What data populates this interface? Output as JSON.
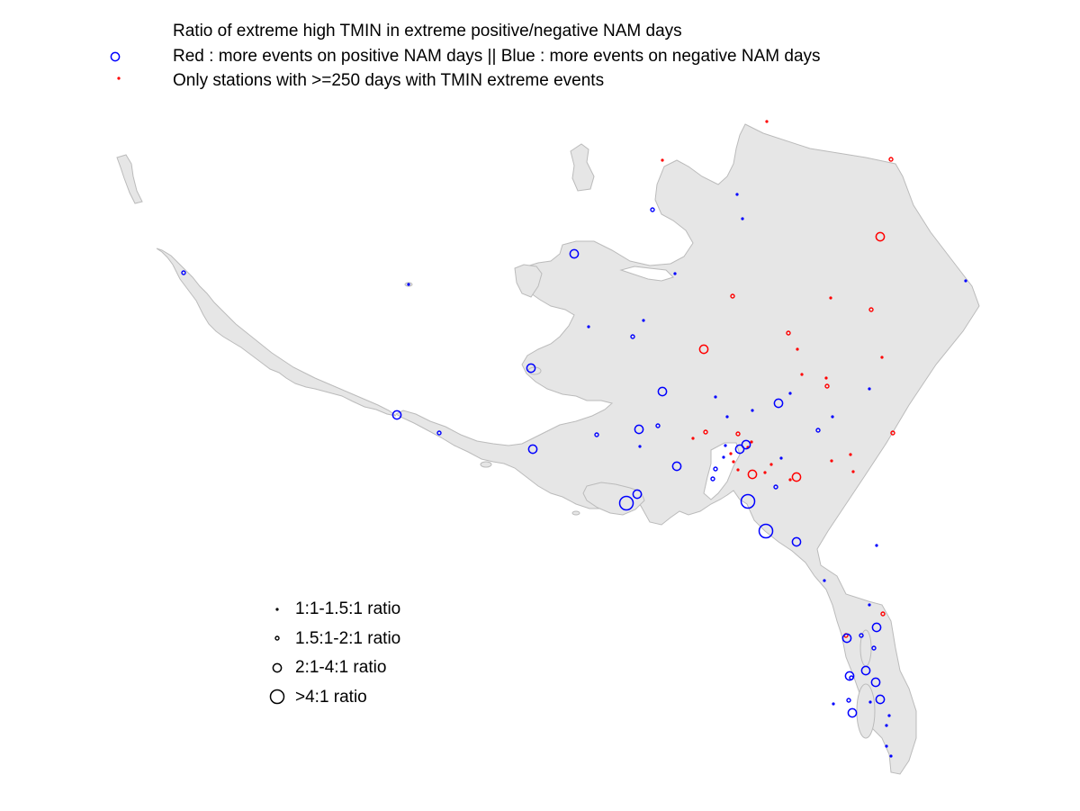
{
  "title": {
    "line1": "Ratio of extreme high TMIN in extreme positive/negative NAM days",
    "line2": "Red : more events on positive NAM days || Blue : more events on negative NAM days",
    "line3": "Only stations with >=250 days with TMIN extreme events"
  },
  "legend": {
    "items": [
      {
        "label": "1:1-1.5:1 ratio",
        "size": 1
      },
      {
        "label": "1.5:1-2:1 ratio",
        "size": 2
      },
      {
        "label": "2:1-4:1 ratio",
        "size": 3
      },
      {
        "label": ">4:1 ratio",
        "size": 4
      }
    ]
  },
  "colors": {
    "positive": "#ff0000",
    "negative": "#0000ff",
    "land": "#e6e6e6",
    "coastline": "#bbbbbb"
  },
  "stations_positive": [
    [
      852,
      135,
      1
    ],
    [
      990,
      177,
      2
    ],
    [
      978,
      263,
      3
    ],
    [
      814,
      329,
      2
    ],
    [
      923,
      331,
      1
    ],
    [
      968,
      344,
      2
    ],
    [
      876,
      370,
      2
    ],
    [
      782,
      388,
      3
    ],
    [
      886,
      388,
      1
    ],
    [
      980,
      397,
      1
    ],
    [
      891,
      416,
      1
    ],
    [
      918,
      420,
      1
    ],
    [
      919,
      429,
      2
    ],
    [
      784,
      480,
      2
    ],
    [
      770,
      487,
      1
    ],
    [
      820,
      482,
      2
    ],
    [
      835,
      491,
      1
    ],
    [
      992,
      481,
      2
    ],
    [
      812,
      504,
      1
    ],
    [
      815,
      513,
      1
    ],
    [
      831,
      497,
      1
    ],
    [
      836,
      527,
      3
    ],
    [
      820,
      522,
      1
    ],
    [
      850,
      525,
      1
    ],
    [
      885,
      530,
      3
    ],
    [
      878,
      533,
      1
    ],
    [
      857,
      516,
      1
    ],
    [
      948,
      524,
      1
    ],
    [
      945,
      505,
      1
    ],
    [
      940,
      706,
      2
    ],
    [
      981,
      682,
      2
    ],
    [
      924,
      512,
      1
    ],
    [
      736,
      178,
      1
    ]
  ],
  "stations_negative": [
    [
      204,
      303,
      2
    ],
    [
      454,
      316,
      1
    ],
    [
      725,
      233,
      2
    ],
    [
      819,
      216,
      1
    ],
    [
      825,
      243,
      1
    ],
    [
      750,
      304,
      1
    ],
    [
      638,
      282,
      3
    ],
    [
      590,
      409,
      3
    ],
    [
      654,
      363,
      1
    ],
    [
      703,
      374,
      2
    ],
    [
      715,
      356,
      1
    ],
    [
      736,
      435,
      3
    ],
    [
      795,
      441,
      1
    ],
    [
      865,
      448,
      3
    ],
    [
      878,
      437,
      1
    ],
    [
      836,
      456,
      1
    ],
    [
      808,
      463,
      1
    ],
    [
      909,
      478,
      2
    ],
    [
      925,
      463,
      1
    ],
    [
      966,
      432,
      1
    ],
    [
      1073,
      312,
      1
    ],
    [
      441,
      461,
      3
    ],
    [
      488,
      481,
      2
    ],
    [
      592,
      499,
      3
    ],
    [
      663,
      483,
      2
    ],
    [
      710,
      477,
      3
    ],
    [
      731,
      473,
      2
    ],
    [
      711,
      496,
      1
    ],
    [
      752,
      518,
      3
    ],
    [
      795,
      521,
      2
    ],
    [
      792,
      532,
      2
    ],
    [
      822,
      499,
      3
    ],
    [
      829,
      494,
      3
    ],
    [
      806,
      495,
      1
    ],
    [
      804,
      508,
      1
    ],
    [
      831,
      557,
      4
    ],
    [
      862,
      541,
      2
    ],
    [
      868,
      509,
      1
    ],
    [
      708,
      549,
      3
    ],
    [
      696,
      559,
      4
    ],
    [
      851,
      590,
      4
    ],
    [
      885,
      602,
      3
    ],
    [
      916,
      645,
      1
    ],
    [
      974,
      697,
      3
    ],
    [
      941,
      709,
      3
    ],
    [
      957,
      706,
      2
    ],
    [
      962,
      745,
      3
    ],
    [
      973,
      758,
      3
    ],
    [
      944,
      751,
      3
    ],
    [
      946,
      753,
      2
    ],
    [
      943,
      778,
      2
    ],
    [
      978,
      777,
      3
    ],
    [
      947,
      792,
      3
    ],
    [
      971,
      720,
      2
    ],
    [
      988,
      795,
      1
    ],
    [
      985,
      829,
      1
    ],
    [
      990,
      840,
      1
    ],
    [
      967,
      780,
      1
    ],
    [
      966,
      672,
      1
    ],
    [
      974,
      606,
      1
    ],
    [
      985,
      806,
      1
    ],
    [
      926,
      782,
      1
    ]
  ]
}
